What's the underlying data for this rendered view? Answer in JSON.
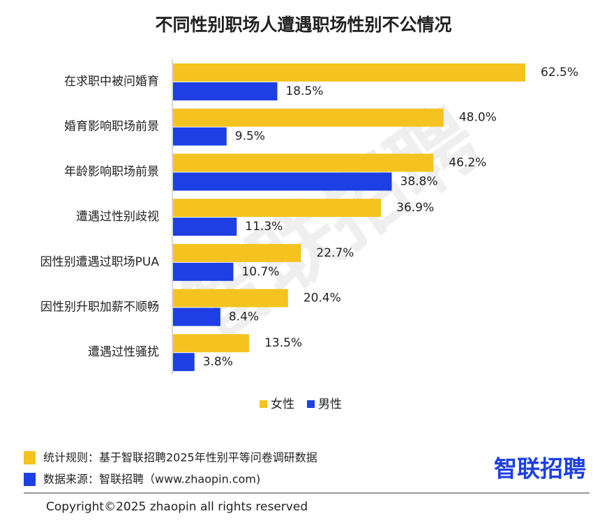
{
  "chart_data": {
    "type": "bar",
    "orientation": "horizontal",
    "title": "不同性别职场人遭遇职场性别不公情况",
    "categories": [
      "在求职中被问婚育",
      "婚育影响职场前景",
      "年龄影响职场前景",
      "遭遇过性别歧视",
      "因性别遭遇过职场PUA",
      "因性别升职加薪不顺畅",
      "遭遇过性骚扰"
    ],
    "series": [
      {
        "name": "女性",
        "color": "#f4c320",
        "values": [
          62.5,
          48.0,
          46.2,
          36.9,
          22.7,
          20.4,
          13.5
        ],
        "value_labels": [
          "62.5%",
          "48.0%",
          "46.2%",
          "36.9%",
          "22.7%",
          "20.4%",
          "13.5%"
        ]
      },
      {
        "name": "男性",
        "color": "#1d3fe3",
        "values": [
          18.5,
          9.5,
          38.8,
          11.3,
          10.7,
          8.4,
          3.8
        ],
        "value_labels": [
          "18.5%",
          "9.5%",
          "38.8%",
          "11.3%",
          "10.7%",
          "8.4%",
          "3.8%"
        ]
      }
    ],
    "legend": "bottom"
  },
  "watermark": "智联招聘",
  "footer": {
    "notes": [
      "统计规则：基于智联招聘2025年性别平等问卷调研数据",
      "数据来源：智联招聘（www.zhaopin.com)"
    ],
    "logo": "智联招聘",
    "copyright": "Copyright©2025 zhaopin all rights reserved"
  }
}
